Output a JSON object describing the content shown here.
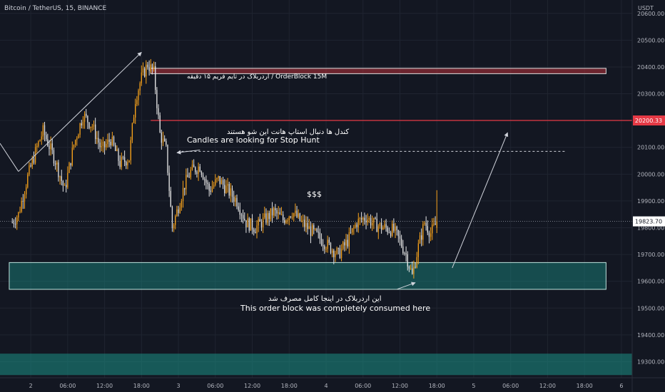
{
  "header": {
    "symbol_title": "Bitcoin / TetherUS, 15, BINANCE",
    "currency": "USDT"
  },
  "colors": {
    "background": "#131722",
    "up": "#f7a21b",
    "down": "#e6e6e6",
    "grid": "#1f2430",
    "axis_text": "#b2b5be",
    "orderblock_red": "#b8323a",
    "orderblock_green": "#1b8f85",
    "level_line": "#e53945"
  },
  "chart_data": {
    "type": "candlestick",
    "ylim": [
      19240,
      20650
    ],
    "y_ticks": [
      19300,
      19400,
      19500,
      19600,
      19700,
      19800,
      19900,
      20000,
      20100,
      20200,
      20300,
      20400,
      20500,
      20600
    ],
    "y_tick_labels": [
      "19300.00",
      "19400.00",
      "19500.00",
      "19600.00",
      "19700.00",
      "19800.00",
      "19900.00",
      "20000.00",
      "20100.00",
      "20200.00",
      "20300.00",
      "20400.00",
      "20500.00",
      "20600.00"
    ],
    "x_ticks": [
      "2",
      "06:00",
      "12:00",
      "18:00",
      "3",
      "06:00",
      "12:00",
      "18:00",
      "4",
      "06:00",
      "12:00",
      "18:00",
      "5",
      "06:00",
      "12:00",
      "18:00",
      "6"
    ],
    "x_tick_bar_index": [
      12,
      36,
      60,
      84,
      108,
      132,
      156,
      180,
      204,
      228,
      252,
      276,
      300,
      324,
      348,
      372,
      396
    ],
    "x_domain_bars": [
      -8,
      403
    ],
    "price_last": "19823.70",
    "price_level": "20200.33",
    "last_price_value": 19823.7,
    "level_value": 20200.33,
    "anchors": [
      [
        0,
        19820
      ],
      [
        4,
        19850
      ],
      [
        10,
        19990
      ],
      [
        16,
        20100
      ],
      [
        20,
        20160
      ],
      [
        28,
        20050
      ],
      [
        34,
        19940
      ],
      [
        40,
        20110
      ],
      [
        46,
        20220
      ],
      [
        52,
        20180
      ],
      [
        58,
        20090
      ],
      [
        64,
        20130
      ],
      [
        70,
        20040
      ],
      [
        76,
        20060
      ],
      [
        80,
        20280
      ],
      [
        84,
        20360
      ],
      [
        88,
        20410
      ],
      [
        92,
        20380
      ],
      [
        96,
        20150
      ],
      [
        100,
        20090
      ],
      [
        104,
        19800
      ],
      [
        108,
        19880
      ],
      [
        112,
        19960
      ],
      [
        116,
        20010
      ],
      [
        122,
        20030
      ],
      [
        128,
        19940
      ],
      [
        134,
        19980
      ],
      [
        140,
        19940
      ],
      [
        146,
        19900
      ],
      [
        152,
        19820
      ],
      [
        158,
        19800
      ],
      [
        164,
        19830
      ],
      [
        170,
        19860
      ],
      [
        176,
        19830
      ],
      [
        182,
        19860
      ],
      [
        188,
        19820
      ],
      [
        194,
        19790
      ],
      [
        200,
        19760
      ],
      [
        206,
        19730
      ],
      [
        212,
        19700
      ],
      [
        218,
        19750
      ],
      [
        224,
        19820
      ],
      [
        230,
        19840
      ],
      [
        236,
        19810
      ],
      [
        242,
        19800
      ],
      [
        248,
        19790
      ],
      [
        252,
        19750
      ],
      [
        256,
        19700
      ],
      [
        260,
        19620
      ],
      [
        264,
        19730
      ],
      [
        268,
        19820
      ],
      [
        272,
        19780
      ],
      [
        276,
        19820
      ]
    ],
    "last_candle": {
      "o": 19800,
      "h": 19940,
      "l": 19780,
      "c": 19824
    },
    "orderblocks": [
      {
        "name": "orderblock-15m",
        "from_bar": 90,
        "to_bar": 386,
        "top": 20395,
        "bottom": 20375
      },
      {
        "name": "demand-zone",
        "from_bar": -2,
        "to_bar": 386,
        "top": 19670,
        "bottom": 19570
      },
      {
        "name": "lower-zone",
        "from_bar": -8,
        "to_bar": 403,
        "top": 19330,
        "bottom": 19250
      }
    ],
    "stop_hunt_level": {
      "value": 20085,
      "from_bar": 110,
      "to_bar": 360
    },
    "annotations": {
      "orderblock_label": "اردربلاک در تایم فریم ۱۵ دقیقه / OrderBlock 15M",
      "stop_hunt_fa": "کندل ها دنبال استاپ هانت این شو  هستند",
      "stop_hunt_en": "Candles are looking for Stop Hunt",
      "dollars": "$$$",
      "consumed_fa": "این اردربلاک در اینجا کامل مصرف شد",
      "consumed_en": "This order block was completely consumed here"
    }
  }
}
